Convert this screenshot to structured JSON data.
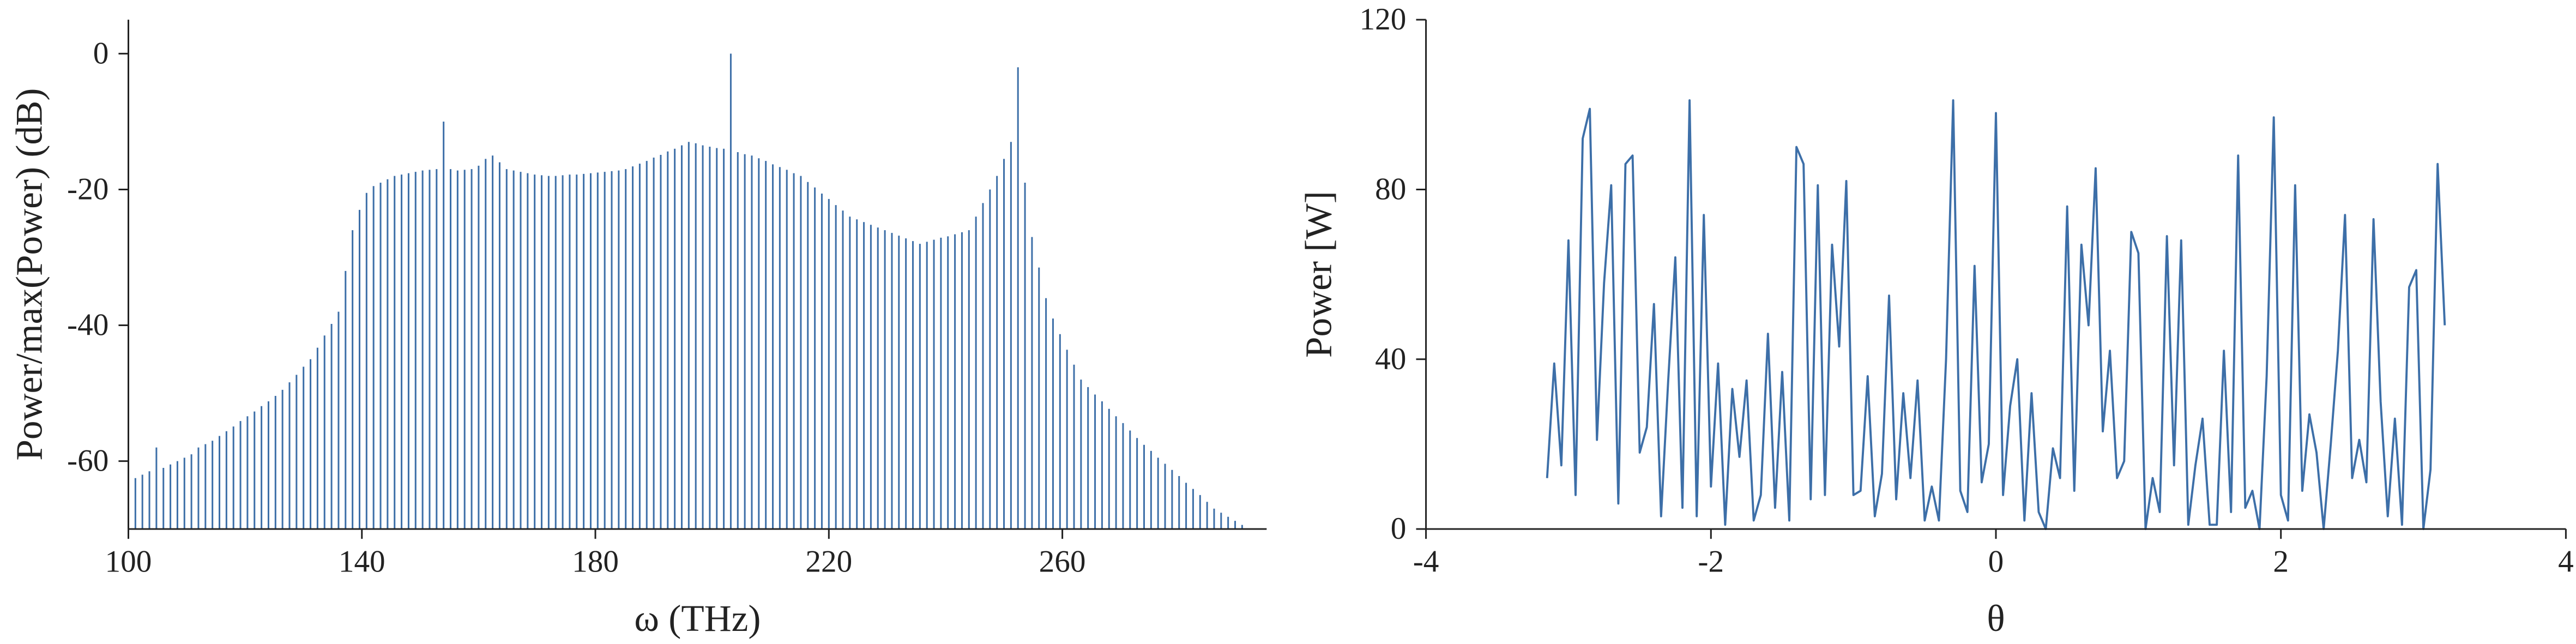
{
  "chart_data": [
    {
      "type": "stem",
      "xlabel": "ω (THz)",
      "ylabel": "Power/max(Power) (dB)",
      "color": "#3d6fa8",
      "xlim": [
        100,
        295
      ],
      "ylim": [
        -70,
        5
      ],
      "xticks": [
        100,
        140,
        180,
        220,
        260
      ],
      "yticks": [
        0,
        -20,
        -40,
        -60
      ],
      "x": [
        100,
        101.2,
        102.4,
        103.6,
        104.8,
        106,
        107.2,
        108.4,
        109.6,
        110.8,
        112,
        113.2,
        114.4,
        115.6,
        116.8,
        118,
        119.2,
        120.4,
        121.6,
        122.8,
        124,
        125.2,
        126.4,
        127.6,
        128.8,
        130,
        131.2,
        132.4,
        133.6,
        134.8,
        136,
        137.2,
        138.4,
        139.6,
        140.8,
        142,
        143.2,
        144.4,
        145.6,
        146.8,
        148,
        149.2,
        150.4,
        151.6,
        152.8,
        154,
        155.2,
        156.4,
        157.6,
        158.8,
        160,
        161.2,
        162.4,
        163.6,
        164.8,
        166,
        167.2,
        168.4,
        169.6,
        170.8,
        172,
        173.2,
        174.4,
        175.6,
        176.8,
        178,
        179.2,
        180.4,
        181.6,
        182.8,
        184,
        185.2,
        186.4,
        187.6,
        188.8,
        190,
        191.2,
        192.4,
        193.6,
        194.8,
        196,
        197.2,
        198.4,
        199.6,
        200.8,
        202,
        203.2,
        204.4,
        205.6,
        206.8,
        208,
        209.2,
        210.4,
        211.6,
        212.8,
        214,
        215.2,
        216.4,
        217.6,
        218.8,
        220,
        221.2,
        222.4,
        223.6,
        224.8,
        226,
        227.2,
        228.4,
        229.6,
        230.8,
        232,
        233.2,
        234.4,
        235.6,
        236.8,
        238,
        239.2,
        240.4,
        241.6,
        242.8,
        244,
        245.2,
        246.4,
        247.6,
        248.8,
        250,
        251.2,
        252.4,
        253.6,
        254.8,
        256,
        257.2,
        258.4,
        259.6,
        260.8,
        262,
        263.2,
        264.4,
        265.6,
        266.8,
        268,
        269.2,
        270.4,
        271.6,
        272.8,
        274,
        275.2,
        276.4,
        277.6,
        278.8,
        280,
        281.2,
        282.4,
        283.6,
        284.8,
        286,
        287.2,
        288.4,
        289.6,
        290.8,
        292
      ],
      "values": [
        -63,
        -62.5,
        -62,
        -61.5,
        -58,
        -61,
        -60.5,
        -60,
        -59.5,
        -59,
        -58,
        -57.5,
        -57,
        -56.3,
        -55.6,
        -54.9,
        -54.1,
        -53.4,
        -52.7,
        -51.9,
        -51.2,
        -50.4,
        -49.5,
        -48.4,
        -47.3,
        -46.1,
        -45,
        -43.3,
        -41.5,
        -39.8,
        -38,
        -32,
        -26,
        -23,
        -20.5,
        -19.5,
        -19,
        -18.5,
        -18,
        -17.8,
        -17.6,
        -17.4,
        -17.2,
        -17.1,
        -17,
        -10,
        -17,
        -17.2,
        -17.1,
        -17,
        -16.5,
        -15.5,
        -15,
        -16,
        -17,
        -17.2,
        -17.4,
        -17.6,
        -17.8,
        -17.9,
        -18,
        -18,
        -17.9,
        -17.8,
        -17.8,
        -17.7,
        -17.6,
        -17.5,
        -17.4,
        -17.3,
        -17.2,
        -17,
        -16.6,
        -16.2,
        -15.8,
        -15.3,
        -14.9,
        -14.4,
        -14,
        -13.5,
        -13,
        -13.2,
        -13.5,
        -13.7,
        -13.9,
        -14,
        0,
        -14.5,
        -14.8,
        -15,
        -15.4,
        -15.8,
        -16.3,
        -16.7,
        -17.1,
        -17.6,
        -18,
        -18.9,
        -19.7,
        -20.6,
        -21.4,
        -22.3,
        -23.1,
        -24,
        -24.4,
        -24.8,
        -25.2,
        -25.6,
        -26,
        -26.4,
        -26.8,
        -27.2,
        -27.6,
        -28,
        -27.7,
        -27.4,
        -27.1,
        -26.9,
        -26.6,
        -26.3,
        -26,
        -24,
        -22,
        -20,
        -18,
        -15.5,
        -13,
        -2,
        -19,
        -27,
        -31.5,
        -36,
        -39,
        -41.3,
        -43.6,
        -45.8,
        -48,
        -49.1,
        -50.2,
        -51.2,
        -52.3,
        -53.4,
        -54.4,
        -55.5,
        -56.6,
        -57.6,
        -58.5,
        -59.5,
        -60.4,
        -61.3,
        -62.2,
        -63.2,
        -64.1,
        -65,
        -66,
        -67,
        -67.6,
        -68.2,
        -68.8,
        -69.4,
        -70
      ]
    },
    {
      "type": "line",
      "xlabel": "θ",
      "ylabel": "Power [W]",
      "color": "#3d6fa8",
      "xlim": [
        -4,
        4
      ],
      "ylim": [
        0,
        120
      ],
      "xticks": [
        -4,
        -2,
        0,
        2,
        4
      ],
      "yticks": [
        0,
        40,
        80,
        120
      ],
      "x": [
        -3.15,
        -3.1,
        -3.05,
        -3,
        -2.95,
        -2.9,
        -2.85,
        -2.8,
        -2.75,
        -2.7,
        -2.65,
        -2.6,
        -2.55,
        -2.5,
        -2.45,
        -2.4,
        -2.35,
        -2.3,
        -2.25,
        -2.2,
        -2.15,
        -2.1,
        -2.05,
        -2,
        -1.95,
        -1.9,
        -1.85,
        -1.8,
        -1.75,
        -1.7,
        -1.65,
        -1.6,
        -1.55,
        -1.5,
        -1.45,
        -1.4,
        -1.35,
        -1.3,
        -1.25,
        -1.2,
        -1.15,
        -1.1,
        -1.05,
        -1,
        -0.95,
        -0.9,
        -0.85,
        -0.8,
        -0.75,
        -0.7,
        -0.65,
        -0.6,
        -0.55,
        -0.5,
        -0.45,
        -0.4,
        -0.35,
        -0.3,
        -0.25,
        -0.2,
        -0.15,
        -0.1,
        -0.05,
        0,
        0.05,
        0.1,
        0.15,
        0.2,
        0.25,
        0.3,
        0.35,
        0.4,
        0.45,
        0.5,
        0.55,
        0.6,
        0.65,
        0.7,
        0.75,
        0.8,
        0.85,
        0.9,
        0.95,
        1,
        1.05,
        1.1,
        1.15,
        1.2,
        1.25,
        1.3,
        1.35,
        1.4,
        1.45,
        1.5,
        1.55,
        1.6,
        1.65,
        1.7,
        1.75,
        1.8,
        1.85,
        1.9,
        1.95,
        2,
        2.05,
        2.1,
        2.15,
        2.2,
        2.25,
        2.3,
        2.35,
        2.4,
        2.45,
        2.5,
        2.55,
        2.6,
        2.65,
        2.7,
        2.75,
        2.8,
        2.85,
        2.9,
        2.95,
        3,
        3.05,
        3.1,
        3.15
      ],
      "values": [
        12,
        39,
        15,
        68,
        8,
        92,
        99,
        21,
        58,
        81,
        6,
        86,
        88,
        18,
        24,
        53,
        3,
        35,
        64,
        5,
        101,
        3,
        74,
        10,
        39,
        1,
        33,
        17,
        35,
        2,
        8,
        46,
        5,
        37,
        2,
        90,
        86,
        7,
        81,
        8,
        67,
        43,
        82,
        8,
        9,
        36,
        3,
        13,
        55,
        7,
        32,
        12,
        35,
        2,
        10,
        2,
        40,
        101,
        9,
        4,
        62,
        11,
        20,
        98,
        8,
        29,
        40,
        2,
        32,
        4,
        0,
        19,
        12,
        76,
        9,
        67,
        48,
        85,
        23,
        42,
        12,
        16,
        70,
        65,
        0,
        12,
        4,
        69,
        15,
        68,
        1,
        15,
        26,
        1,
        1,
        42,
        4,
        88,
        5,
        9,
        0,
        36,
        97,
        8,
        2,
        81,
        9,
        27,
        18,
        0,
        20,
        42,
        74,
        12,
        21,
        11,
        73,
        30,
        3,
        26,
        1,
        57,
        61,
        0,
        14,
        86,
        48
      ]
    }
  ]
}
